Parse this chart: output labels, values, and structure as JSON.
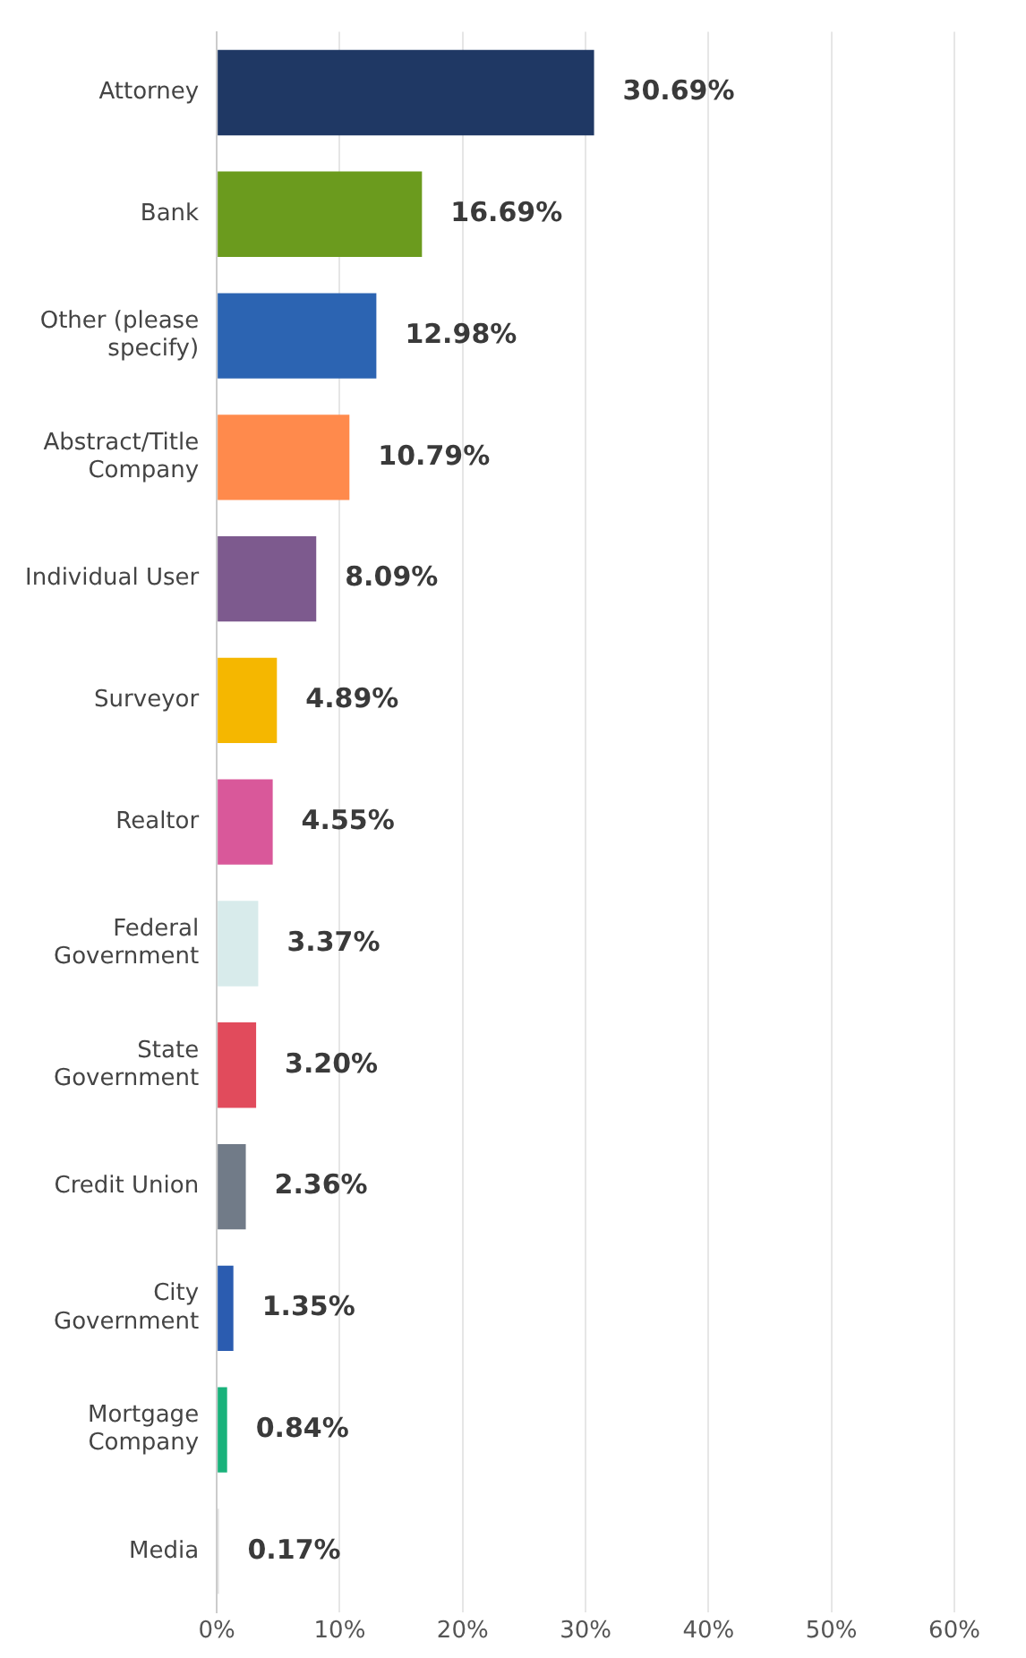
{
  "chart_data": {
    "type": "bar",
    "orientation": "horizontal",
    "categories": [
      "Attorney",
      "Bank",
      "Other (please\nspecify)",
      "Abstract/Title\nCompany",
      "Individual User",
      "Surveyor",
      "Realtor",
      "Federal\nGovernment",
      "State\nGovernment",
      "Credit Union",
      "City\nGovernment",
      "Mortgage\nCompany",
      "Media"
    ],
    "values": [
      30.69,
      16.69,
      12.98,
      10.79,
      8.09,
      4.89,
      4.55,
      3.37,
      3.2,
      2.36,
      1.35,
      0.84,
      0.17
    ],
    "colors": [
      "#1f3864",
      "#6b9b1e",
      "#2c64b2",
      "#ff8a4c",
      "#7d5a8e",
      "#f5b700",
      "#d9589a",
      "#d8ebeb",
      "#e14b5c",
      "#717b88",
      "#2b5cb0",
      "#19b27b",
      "#dcdcdc"
    ],
    "value_labels": [
      "30.69%",
      "16.69%",
      "12.98%",
      "10.79%",
      "8.09%",
      "4.89%",
      "4.55%",
      "3.37%",
      "3.20%",
      "2.36%",
      "1.35%",
      "0.84%",
      "0.17%"
    ],
    "xlim": [
      0,
      60
    ],
    "xticks": [
      {
        "value": 0,
        "label": "0%"
      },
      {
        "value": 10,
        "label": "10%"
      },
      {
        "value": 20,
        "label": "20%"
      },
      {
        "value": 30,
        "label": "30%"
      },
      {
        "value": 40,
        "label": "40%"
      },
      {
        "value": 50,
        "label": "50%"
      },
      {
        "value": 60,
        "label": "60%"
      }
    ],
    "grid": "x",
    "legend": false
  }
}
